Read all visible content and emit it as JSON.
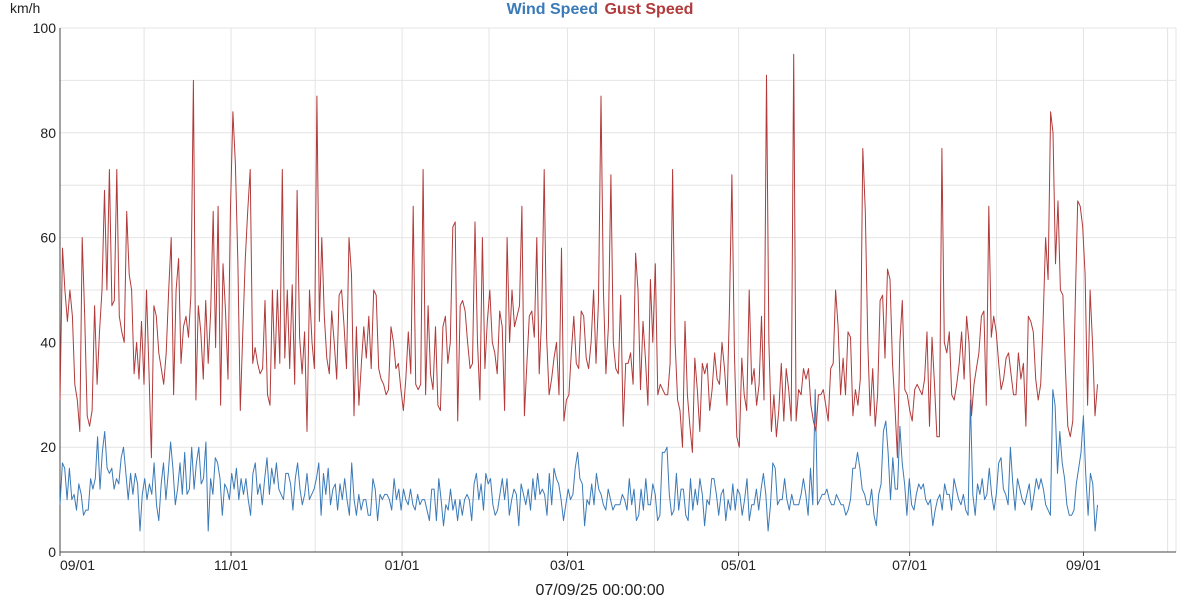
{
  "chart_data": {
    "type": "line",
    "ylabel": "km/h",
    "xlabel": "07/09/25 00:00:00",
    "ylim": [
      0,
      100
    ],
    "yticks": [
      0,
      20,
      40,
      60,
      80,
      100
    ],
    "xticks": [
      "09/01",
      "11/01",
      "01/01",
      "03/01",
      "05/01",
      "07/01",
      "09/01"
    ],
    "grid": true,
    "legend_position": "top-center",
    "x_start": "2024-09-01",
    "x_end": "2025-10-04",
    "series": [
      {
        "name": "Wind Speed",
        "color": "#3a7ab8",
        "values": [
          9,
          17,
          16,
          10,
          16,
          10,
          11,
          8,
          13,
          11,
          7,
          8,
          8,
          14,
          12,
          14,
          22,
          12,
          19,
          23,
          16,
          15,
          16,
          12,
          14,
          13,
          18,
          20,
          15,
          10,
          15,
          11,
          15,
          13,
          4,
          11,
          14,
          10,
          13,
          11,
          17,
          9,
          6,
          13,
          17,
          10,
          15,
          21,
          16,
          9,
          12,
          17,
          11,
          19,
          11,
          12,
          20,
          12,
          17,
          20,
          13,
          14,
          21,
          4,
          14,
          11,
          18,
          17,
          14,
          7,
          13,
          12,
          10,
          15,
          12,
          16,
          10,
          14,
          11,
          14,
          10,
          7,
          15,
          17,
          11,
          13,
          9,
          14,
          18,
          11,
          16,
          13,
          17,
          12,
          11,
          10,
          15,
          15,
          13,
          8,
          14,
          17,
          12,
          9,
          11,
          15,
          10,
          11,
          12,
          14,
          17,
          7,
          15,
          11,
          16,
          9,
          12,
          13,
          8,
          13,
          10,
          14,
          10,
          7,
          17,
          10,
          7,
          11,
          8,
          10,
          10,
          7,
          7,
          14,
          12,
          6,
          11,
          10,
          11,
          11,
          10,
          8,
          14,
          10,
          12,
          8,
          12,
          10,
          9,
          12,
          9,
          8,
          11,
          9,
          10,
          10,
          8,
          6,
          12,
          12,
          6,
          14,
          10,
          5,
          9,
          8,
          12,
          8,
          10,
          6,
          10,
          7,
          10,
          11,
          10,
          6,
          13,
          15,
          10,
          13,
          8,
          15,
          13,
          14,
          9,
          7,
          8,
          11,
          14,
          10,
          14,
          7,
          10,
          12,
          11,
          5,
          13,
          11,
          9,
          12,
          8,
          14,
          10,
          15,
          11,
          12,
          11,
          7,
          15,
          9,
          16,
          14,
          13,
          10,
          6,
          9,
          12,
          10,
          11,
          16,
          19,
          14,
          13,
          5,
          10,
          9,
          13,
          9,
          15,
          12,
          11,
          9,
          8,
          12,
          10,
          8,
          9,
          9,
          9,
          11,
          10,
          8,
          14,
          9,
          12,
          6,
          7,
          12,
          8,
          14,
          9,
          9,
          13,
          11,
          6,
          7,
          19,
          19,
          20,
          11,
          7,
          8,
          15,
          8,
          12,
          12,
          7,
          6,
          14,
          8,
          12,
          9,
          14,
          11,
          5,
          10,
          9,
          14,
          14,
          11,
          7,
          11,
          12,
          6,
          10,
          8,
          13,
          8,
          12,
          11,
          7,
          10,
          14,
          6,
          9,
          9,
          12,
          8,
          12,
          15,
          11,
          4,
          9,
          17,
          16,
          9,
          10,
          10,
          14,
          10,
          8,
          11,
          9,
          9,
          9,
          11,
          14,
          11,
          7,
          16,
          9,
          31,
          9,
          10,
          11,
          11,
          12,
          10,
          9,
          9,
          11,
          10,
          9,
          9,
          7,
          8,
          10,
          16,
          16,
          19,
          16,
          12,
          11,
          9,
          9,
          12,
          7,
          5,
          11,
          13,
          23,
          25,
          19,
          10,
          18,
          12,
          12,
          24,
          17,
          13,
          7,
          14,
          9,
          8,
          11,
          13,
          12,
          13,
          10,
          9,
          10,
          5,
          8,
          10,
          11,
          8,
          13,
          11,
          11,
          8,
          14,
          12,
          10,
          9,
          11,
          8,
          7,
          29,
          11,
          7,
          13,
          11,
          14,
          10,
          11,
          16,
          11,
          8,
          11,
          17,
          18,
          12,
          11,
          9,
          20,
          13,
          8,
          14,
          12,
          10,
          9,
          11,
          13,
          8,
          11,
          14,
          12,
          14,
          12,
          9,
          8,
          7,
          31,
          28,
          15,
          23,
          17,
          14,
          9,
          7,
          7,
          8,
          13,
          16,
          19,
          26,
          15,
          7,
          15,
          13,
          4,
          9
        ]
      },
      {
        "name": "Gust Speed",
        "color": "#b23a3a",
        "values": [
          29,
          58,
          50,
          44,
          50,
          45,
          32,
          29,
          23,
          60,
          45,
          26,
          24,
          27,
          47,
          32,
          42,
          50,
          69,
          50,
          73,
          47,
          48,
          73,
          45,
          42,
          40,
          65,
          53,
          50,
          34,
          40,
          33,
          44,
          32,
          50,
          35,
          18,
          47,
          45,
          38,
          35,
          32,
          38,
          50,
          60,
          30,
          50,
          56,
          36,
          43,
          45,
          41,
          49,
          90,
          29,
          47,
          42,
          33,
          48,
          36,
          46,
          65,
          39,
          66,
          28,
          55,
          46,
          33,
          65,
          84,
          74,
          55,
          27,
          42,
          56,
          65,
          73,
          36,
          39,
          36,
          34,
          35,
          48,
          30,
          28,
          50,
          35,
          50,
          36,
          73,
          37,
          50,
          35,
          51,
          32,
          69,
          41,
          34,
          42,
          23,
          50,
          40,
          35,
          87,
          44,
          60,
          45,
          37,
          34,
          46,
          40,
          33,
          49,
          50,
          43,
          35,
          60,
          53,
          26,
          43,
          28,
          36,
          43,
          37,
          45,
          35,
          50,
          49,
          35,
          33,
          32,
          30,
          31,
          43,
          40,
          35,
          36,
          31,
          27,
          33,
          42,
          34,
          66,
          32,
          31,
          32,
          73,
          30,
          47,
          34,
          31,
          43,
          28,
          27,
          43,
          45,
          36,
          40,
          62,
          63,
          25,
          47,
          48,
          46,
          40,
          35,
          36,
          63,
          40,
          29,
          60,
          35,
          44,
          50,
          40,
          38,
          34,
          46,
          43,
          27,
          60,
          40,
          50,
          43,
          45,
          47,
          66,
          26,
          36,
          45,
          46,
          41,
          60,
          34,
          45,
          73,
          41,
          30,
          33,
          37,
          40,
          30,
          58,
          25,
          29,
          30,
          38,
          45,
          36,
          35,
          46,
          45,
          37,
          35,
          40,
          50,
          36,
          48,
          87,
          50,
          34,
          43,
          72,
          40,
          35,
          34,
          49,
          24,
          36,
          36,
          38,
          32,
          57,
          50,
          31,
          44,
          37,
          28,
          52,
          40,
          55,
          30,
          32,
          31,
          30,
          30,
          36,
          73,
          40,
          29,
          27,
          20,
          44,
          30,
          24,
          19,
          37,
          31,
          23,
          36,
          34,
          36,
          27,
          31,
          38,
          33,
          32,
          40,
          35,
          28,
          46,
          72,
          38,
          22,
          20,
          37,
          30,
          27,
          50,
          32,
          35,
          28,
          32,
          45,
          29,
          91,
          40,
          23,
          30,
          22,
          27,
          36,
          25,
          35,
          31,
          25,
          95,
          25,
          31,
          30,
          35,
          33,
          35,
          28,
          25,
          23,
          30,
          30,
          31,
          28,
          25,
          35,
          36,
          50,
          43,
          30,
          37,
          30,
          42,
          41,
          26,
          31,
          28,
          33,
          77,
          65,
          40,
          26,
          35,
          24,
          30,
          48,
          49,
          37,
          54,
          52,
          36,
          28,
          18,
          40,
          48,
          31,
          30,
          27,
          25,
          31,
          32,
          31,
          30,
          33,
          42,
          24,
          41,
          32,
          22,
          22,
          77,
          40,
          38,
          42,
          30,
          29,
          32,
          36,
          42,
          33,
          45,
          40,
          26,
          32,
          35,
          38,
          45,
          46,
          28,
          66,
          41,
          45,
          42,
          36,
          31,
          33,
          37,
          38,
          34,
          30,
          30,
          38,
          33,
          36,
          24,
          45,
          44,
          42,
          33,
          29,
          32,
          44,
          60,
          52,
          84,
          80,
          55,
          67,
          50,
          49,
          35,
          24,
          22,
          25,
          48,
          67,
          66,
          62,
          53,
          28,
          50,
          40,
          26,
          32
        ]
      }
    ]
  }
}
